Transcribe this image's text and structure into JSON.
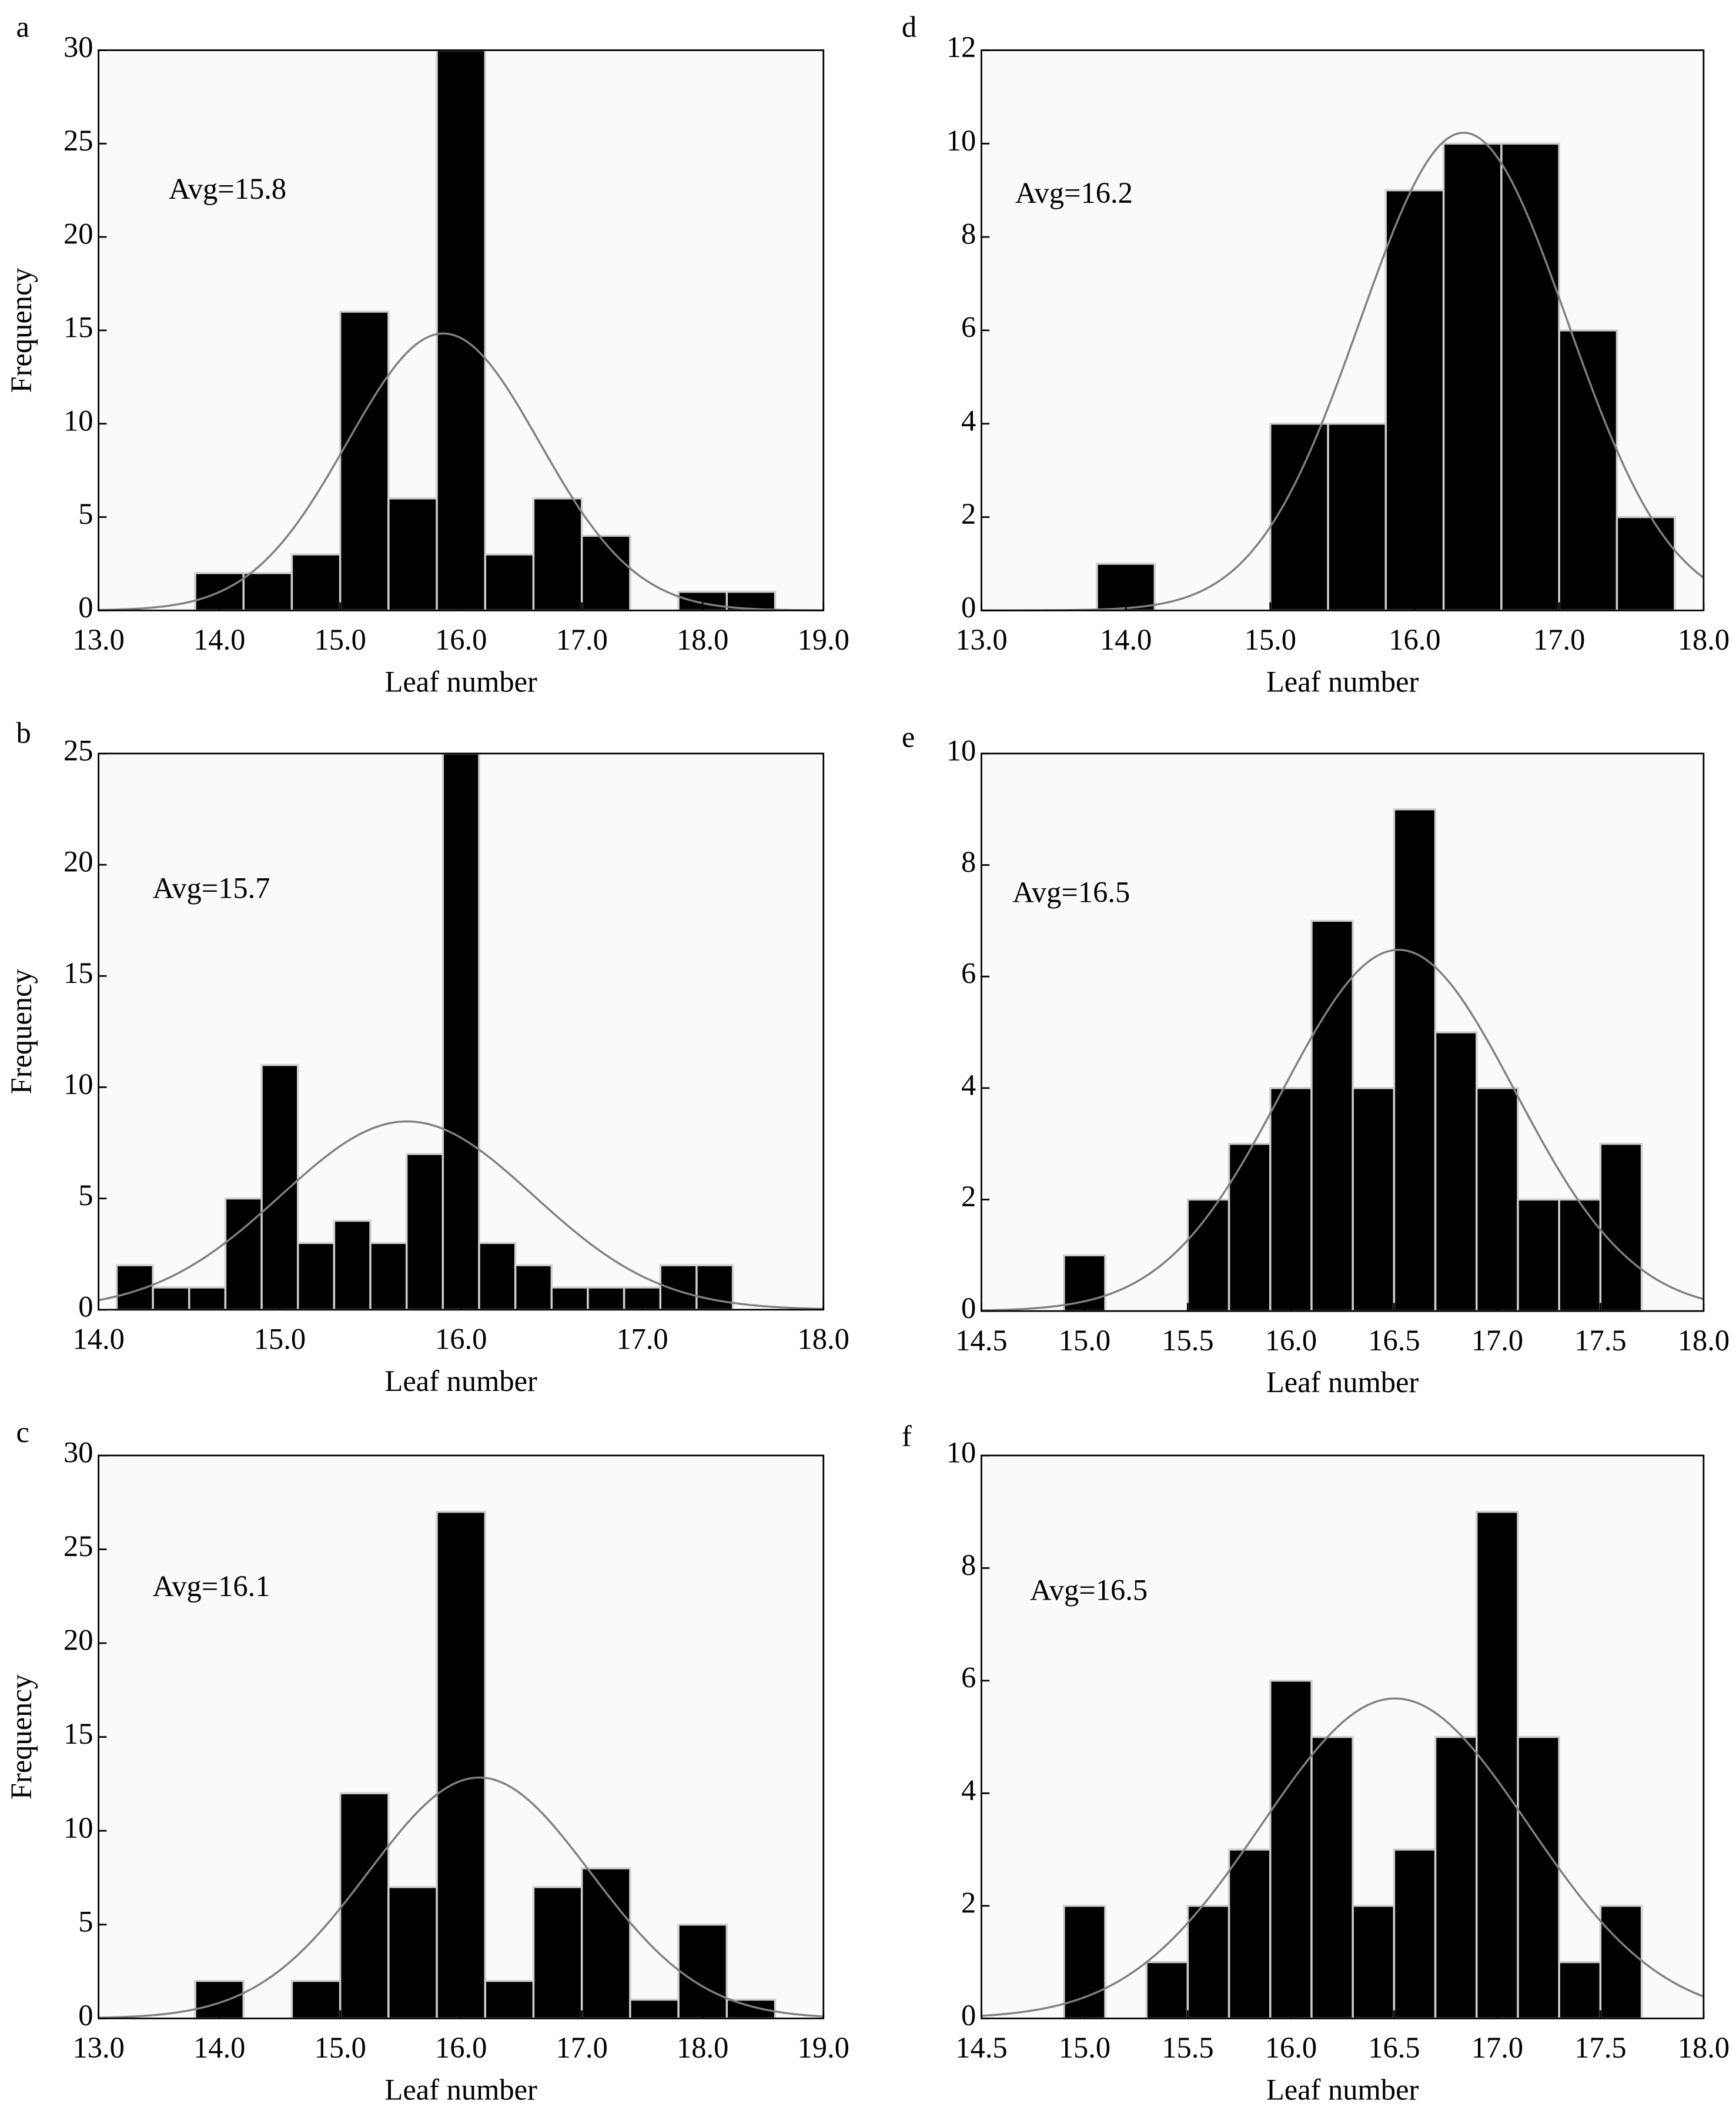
{
  "chart_data": [
    {
      "type": "histogram",
      "panel": "a",
      "annotation": "Avg=15.8",
      "x_label": "Leaf number",
      "y_label": "Frequency",
      "bins": [
        13.8,
        14.2,
        14.6,
        15.0,
        15.4,
        15.8,
        16.2,
        16.6,
        17.0,
        17.4,
        17.8,
        18.2,
        18.6
      ],
      "values": [
        2,
        2,
        3,
        16,
        6,
        30,
        3,
        6,
        4,
        0,
        1,
        1
      ],
      "xlim": [
        13,
        19
      ],
      "ylim": [
        0,
        30
      ],
      "xticks": [
        {
          "value": 13,
          "label": "13.0"
        },
        {
          "value": 14,
          "label": "14.0"
        },
        {
          "value": 15,
          "label": "15.0"
        },
        {
          "value": 16,
          "label": "16.0"
        },
        {
          "value": 17,
          "label": "17.0"
        },
        {
          "value": 18,
          "label": "18.0"
        },
        {
          "value": 19,
          "label": "19.0"
        }
      ],
      "yticks": [
        0,
        5,
        10,
        15,
        20,
        25,
        30
      ],
      "color": "#000000",
      "curve_color": "#808080"
    },
    {
      "type": "histogram",
      "panel": "b",
      "annotation": "Avg=15.7",
      "x_label": "Leaf number",
      "y_label": "Frequency",
      "bins": [
        14.1,
        14.3,
        14.5,
        14.7,
        14.9,
        15.1,
        15.3,
        15.5,
        15.7,
        15.9,
        16.1,
        16.3,
        16.5,
        16.7,
        16.9,
        17.1,
        17.3,
        17.5
      ],
      "values": [
        2,
        1,
        1,
        5,
        11,
        3,
        4,
        3,
        7,
        25,
        3,
        2,
        1,
        1,
        1,
        2,
        2
      ],
      "xlim": [
        14,
        18
      ],
      "ylim": [
        0,
        25
      ],
      "xticks": [
        {
          "value": 14,
          "label": "14.0"
        },
        {
          "value": 15,
          "label": "15.0"
        },
        {
          "value": 16,
          "label": "16.0"
        },
        {
          "value": 17,
          "label": "17.0"
        },
        {
          "value": 18,
          "label": "18.0"
        }
      ],
      "yticks": [
        0,
        5,
        10,
        15,
        20,
        25
      ],
      "color": "#000000",
      "curve_color": "#808080"
    },
    {
      "type": "histogram",
      "panel": "c",
      "annotation": "Avg=16.1",
      "x_label": "Leaf number",
      "y_label": "Frequency",
      "bins": [
        13.8,
        14.2,
        14.6,
        15.0,
        15.4,
        15.8,
        16.2,
        16.6,
        17.0,
        17.4,
        17.8,
        18.2,
        18.6
      ],
      "values": [
        2,
        0,
        2,
        12,
        7,
        27,
        2,
        7,
        8,
        1,
        5,
        1
      ],
      "xlim": [
        13,
        19
      ],
      "ylim": [
        0,
        30
      ],
      "xticks": [
        {
          "value": 13,
          "label": "13.0"
        },
        {
          "value": 14,
          "label": "14.0"
        },
        {
          "value": 15,
          "label": "15.0"
        },
        {
          "value": 16,
          "label": "16.0"
        },
        {
          "value": 17,
          "label": "17.0"
        },
        {
          "value": 18,
          "label": "18.0"
        },
        {
          "value": 19,
          "label": "19.0"
        }
      ],
      "yticks": [
        0,
        5,
        10,
        15,
        20,
        25,
        30
      ],
      "color": "#000000",
      "curve_color": "#808080"
    },
    {
      "type": "histogram",
      "panel": "d",
      "annotation": "Avg=16.2",
      "x_label": "Leaf number",
      "bins": [
        13.8,
        14.2,
        14.6,
        15.0,
        15.4,
        15.8,
        16.2,
        16.6,
        17.0,
        17.4,
        17.8
      ],
      "values": [
        1,
        0,
        0,
        4,
        4,
        9,
        10,
        10,
        6,
        2
      ],
      "xlim": [
        13,
        18
      ],
      "ylim": [
        0,
        12
      ],
      "xticks": [
        {
          "value": 13,
          "label": "13.0"
        },
        {
          "value": 14,
          "label": "14.0"
        },
        {
          "value": 15,
          "label": "15.0"
        },
        {
          "value": 16,
          "label": "16.0"
        },
        {
          "value": 17,
          "label": "17.0"
        },
        {
          "value": 18,
          "label": "18.0"
        }
      ],
      "yticks": [
        0,
        2,
        4,
        6,
        8,
        10,
        12
      ],
      "color": "#000000",
      "curve_color": "#808080"
    },
    {
      "type": "histogram",
      "panel": "e",
      "annotation": "Avg=16.5",
      "x_label": "Leaf number",
      "bins": [
        14.9,
        15.1,
        15.3,
        15.5,
        15.7,
        15.9,
        16.1,
        16.3,
        16.5,
        16.7,
        16.9,
        17.1,
        17.3,
        17.5,
        17.7
      ],
      "values": [
        1,
        0,
        0,
        2,
        3,
        4,
        7,
        4,
        9,
        5,
        4,
        2,
        2,
        3
      ],
      "xlim": [
        14.5,
        18
      ],
      "ylim": [
        0,
        10
      ],
      "xticks": [
        14.5,
        {
          "value": 15,
          "label": "15.0"
        },
        15.5,
        {
          "value": 16,
          "label": "16.0"
        },
        16.5,
        {
          "value": 17,
          "label": "17.0"
        },
        17.5,
        {
          "value": 18,
          "label": "18.0"
        }
      ],
      "yticks": [
        0,
        2,
        4,
        6,
        8,
        10
      ],
      "color": "#000000",
      "curve_color": "#808080"
    },
    {
      "type": "histogram",
      "panel": "f",
      "annotation": "Avg=16.5",
      "x_label": "Leaf number",
      "bins": [
        14.9,
        15.1,
        15.3,
        15.5,
        15.7,
        15.9,
        16.1,
        16.3,
        16.5,
        16.7,
        16.9,
        17.1,
        17.3,
        17.5,
        17.7
      ],
      "values": [
        2,
        0,
        1,
        2,
        3,
        6,
        5,
        2,
        3,
        5,
        9,
        5,
        1,
        2
      ],
      "xlim": [
        14.5,
        18
      ],
      "ylim": [
        0,
        10
      ],
      "xticks": [
        14.5,
        {
          "value": 15,
          "label": "15.0"
        },
        15.5,
        {
          "value": 16,
          "label": "16.0"
        },
        16.5,
        {
          "value": 17,
          "label": "17.0"
        },
        17.5,
        {
          "value": 18,
          "label": "18.0"
        }
      ],
      "yticks": [
        0,
        2,
        4,
        6,
        8,
        10
      ],
      "color": "#000000",
      "curve_color": "#808080"
    }
  ]
}
